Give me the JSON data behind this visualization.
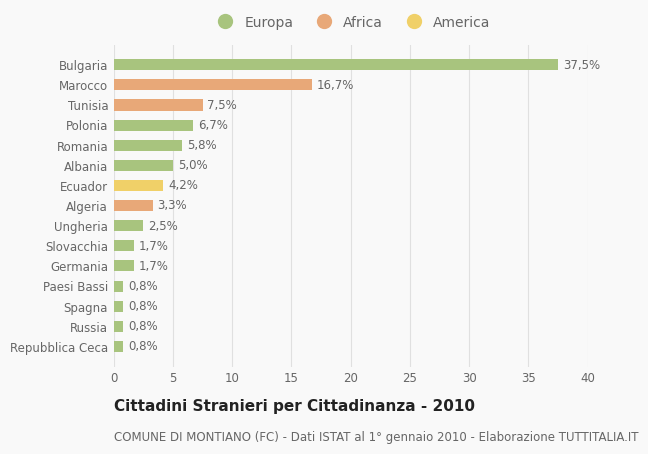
{
  "categories": [
    "Bulgaria",
    "Marocco",
    "Tunisia",
    "Polonia",
    "Romania",
    "Albania",
    "Ecuador",
    "Algeria",
    "Ungheria",
    "Slovacchia",
    "Germania",
    "Paesi Bassi",
    "Spagna",
    "Russia",
    "Repubblica Ceca"
  ],
  "values": [
    37.5,
    16.7,
    7.5,
    6.7,
    5.8,
    5.0,
    4.2,
    3.3,
    2.5,
    1.7,
    1.7,
    0.8,
    0.8,
    0.8,
    0.8
  ],
  "labels": [
    "37,5%",
    "16,7%",
    "7,5%",
    "6,7%",
    "5,8%",
    "5,0%",
    "4,2%",
    "3,3%",
    "2,5%",
    "1,7%",
    "1,7%",
    "0,8%",
    "0,8%",
    "0,8%",
    "0,8%"
  ],
  "colors": [
    "#a8c47e",
    "#e8a878",
    "#e8a878",
    "#a8c47e",
    "#a8c47e",
    "#a8c47e",
    "#f0d068",
    "#e8a878",
    "#a8c47e",
    "#a8c47e",
    "#a8c47e",
    "#a8c47e",
    "#a8c47e",
    "#a8c47e",
    "#a8c47e"
  ],
  "legend_labels": [
    "Europa",
    "Africa",
    "America"
  ],
  "legend_colors": [
    "#a8c47e",
    "#e8a878",
    "#f0d068"
  ],
  "title": "Cittadini Stranieri per Cittadinanza - 2010",
  "subtitle": "COMUNE DI MONTIANO (FC) - Dati ISTAT al 1° gennaio 2010 - Elaborazione TUTTITALIA.IT",
  "xlim": [
    0,
    40
  ],
  "xticks": [
    0,
    5,
    10,
    15,
    20,
    25,
    30,
    35,
    40
  ],
  "background_color": "#f9f9f9",
  "grid_color": "#e0e0e0",
  "bar_height": 0.55,
  "title_fontsize": 11,
  "subtitle_fontsize": 8.5,
  "label_fontsize": 8.5,
  "tick_fontsize": 8.5,
  "legend_fontsize": 10,
  "text_color": "#666666",
  "title_color": "#222222"
}
